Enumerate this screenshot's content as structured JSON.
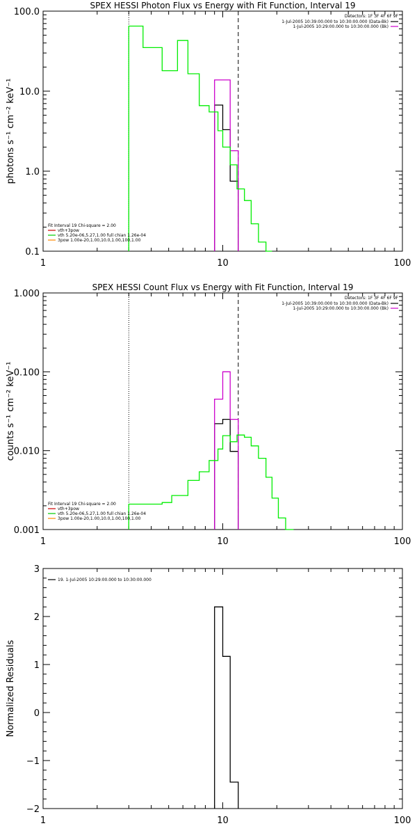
{
  "chart_data": [
    {
      "type": "line",
      "title": "SPEX HESSI Photon Flux vs Energy with Fit Function, Interval 19",
      "ylabel": "photons s⁻¹ cm⁻² keV⁻¹",
      "xlabel": "",
      "xscale": "log",
      "yscale": "log",
      "xlim": [
        1,
        100
      ],
      "ylim": [
        0.1,
        100
      ],
      "x_ticks": [
        "1",
        "10",
        "100"
      ],
      "y_ticks": [
        "0.1",
        "1.0",
        "10.0",
        "100.0"
      ],
      "vlines": {
        "dotted": 3.0,
        "dashed": 12.2
      },
      "legend_right": {
        "title": "Detectors: 1F 3F 4F 6F 9F",
        "items": [
          {
            "text": "1-Jul-2005 10:39:00.000 to 10:30:00.000 (Data-Bk)",
            "color": "#000000"
          },
          {
            "text": "1-Jul-2005 10:29:00.000 to 10:30:00.000 (Bk)",
            "color": "#cc00cc"
          }
        ]
      },
      "legend_left": {
        "title": "Fit Interval 19   Chi-square = 2.00",
        "items": [
          {
            "text": "vth+3pow",
            "color": "#cc0000"
          },
          {
            "text": "vth 5.20e-06,5.27,1.00  full chian 1.26e-04",
            "color": "#00cc00"
          },
          {
            "text": "3pow 1.00e-20,1.00,10.0,1.00,100,1.00",
            "color": "#ff8800"
          }
        ]
      },
      "series": [
        {
          "color": "#000000",
          "edges": [
            9.0,
            10.0,
            11.0,
            12.2
          ],
          "values": [
            6.7,
            3.3,
            0.75
          ],
          "baseline": 0.1
        },
        {
          "color": "#cc00cc",
          "edges": [
            9.0,
            11.0,
            12.2
          ],
          "values": [
            13.8,
            1.8
          ],
          "baseline": 0.1
        },
        {
          "color": "#00ee00",
          "edges": [
            3.0,
            3.6,
            4.6,
            5.6,
            6.4,
            7.4,
            8.4,
            9.4,
            10.0,
            11.0,
            12.0,
            13.2,
            14.4,
            15.8,
            17.4,
            18.8
          ],
          "values": [
            65.0,
            35.0,
            18.0,
            43.0,
            16.5,
            6.6,
            5.5,
            3.2,
            2.0,
            1.2,
            0.6,
            0.43,
            0.22,
            0.13,
            0.1
          ],
          "baseline": 0.1
        }
      ]
    },
    {
      "type": "line",
      "title": "SPEX HESSI Count Flux vs Energy with Fit Function, Interval 19",
      "ylabel": "counts s⁻¹ cm⁻² keV⁻¹",
      "xlabel": "",
      "xscale": "log",
      "yscale": "log",
      "xlim": [
        1,
        100
      ],
      "ylim": [
        0.001,
        1.0
      ],
      "x_ticks": [
        "1",
        "10",
        "100"
      ],
      "y_ticks": [
        "0.001",
        "0.010",
        "0.100",
        "1.000"
      ],
      "vlines": {
        "dotted": 3.0,
        "dashed": 12.2
      },
      "legend_right": {
        "title": "Detectors: 1F 3F 4F 6F 9F",
        "items": [
          {
            "text": "1-Jul-2005 10:39:00.000 to 10:30:00.000 (Data-Bk)",
            "color": "#000000"
          },
          {
            "text": "1-Jul-2005 10:29:00.000 to 10:30:00.000 (Bk)",
            "color": "#cc00cc"
          }
        ]
      },
      "legend_left": {
        "title": "Fit Interval 19   Chi-square = 2.00",
        "items": [
          {
            "text": "vth+3pow",
            "color": "#cc0000"
          },
          {
            "text": "vth 5.20e-06,5.27,1.00  full chian 1.26e-04",
            "color": "#00cc00"
          },
          {
            "text": "3pow 1.00e-20,1.00,10.0,1.00,100,1.00",
            "color": "#ff8800"
          }
        ]
      },
      "series": [
        {
          "color": "#000000",
          "edges": [
            9.0,
            10.0,
            11.0,
            12.2
          ],
          "values": [
            0.022,
            0.025,
            0.0098
          ],
          "baseline": 0.001
        },
        {
          "color": "#cc00cc",
          "edges": [
            9.0,
            10.0,
            11.0,
            12.2
          ],
          "values": [
            0.045,
            0.1,
            0.025
          ],
          "baseline": 0.001
        },
        {
          "color": "#00ee00",
          "edges": [
            3.0,
            4.6,
            5.2,
            6.4,
            7.4,
            8.4,
            9.4,
            10.0,
            11.0,
            12.0,
            13.2,
            14.4,
            15.8,
            17.4,
            18.8,
            20.4,
            22.4,
            24.8
          ],
          "values": [
            0.0021,
            0.0022,
            0.0027,
            0.0042,
            0.0054,
            0.0075,
            0.0105,
            0.0155,
            0.013,
            0.0158,
            0.0148,
            0.0115,
            0.008,
            0.0046,
            0.0025,
            0.0014,
            0.001
          ],
          "baseline": 0.001
        }
      ]
    },
    {
      "type": "line",
      "title": "",
      "ylabel": "Normalized Residuals",
      "xlabel": "",
      "xscale": "log",
      "yscale": "linear",
      "xlim": [
        1,
        100
      ],
      "ylim": [
        -2.0,
        3.0
      ],
      "x_ticks": [
        "1",
        "10",
        "100"
      ],
      "y_ticks": [
        "−2",
        "−1",
        "0",
        "1",
        "2",
        "3"
      ],
      "legend_left": {
        "title": "",
        "items": [
          {
            "text": "19.  1-Jul-2005 10:29:00.000 to 10:30:00.000",
            "color": "#000000"
          }
        ]
      },
      "series": [
        {
          "color": "#000000",
          "edges": [
            9.0,
            10.0,
            11.0,
            12.2
          ],
          "values": [
            2.2,
            1.17,
            -1.45
          ],
          "baseline": -2.0
        }
      ]
    }
  ]
}
